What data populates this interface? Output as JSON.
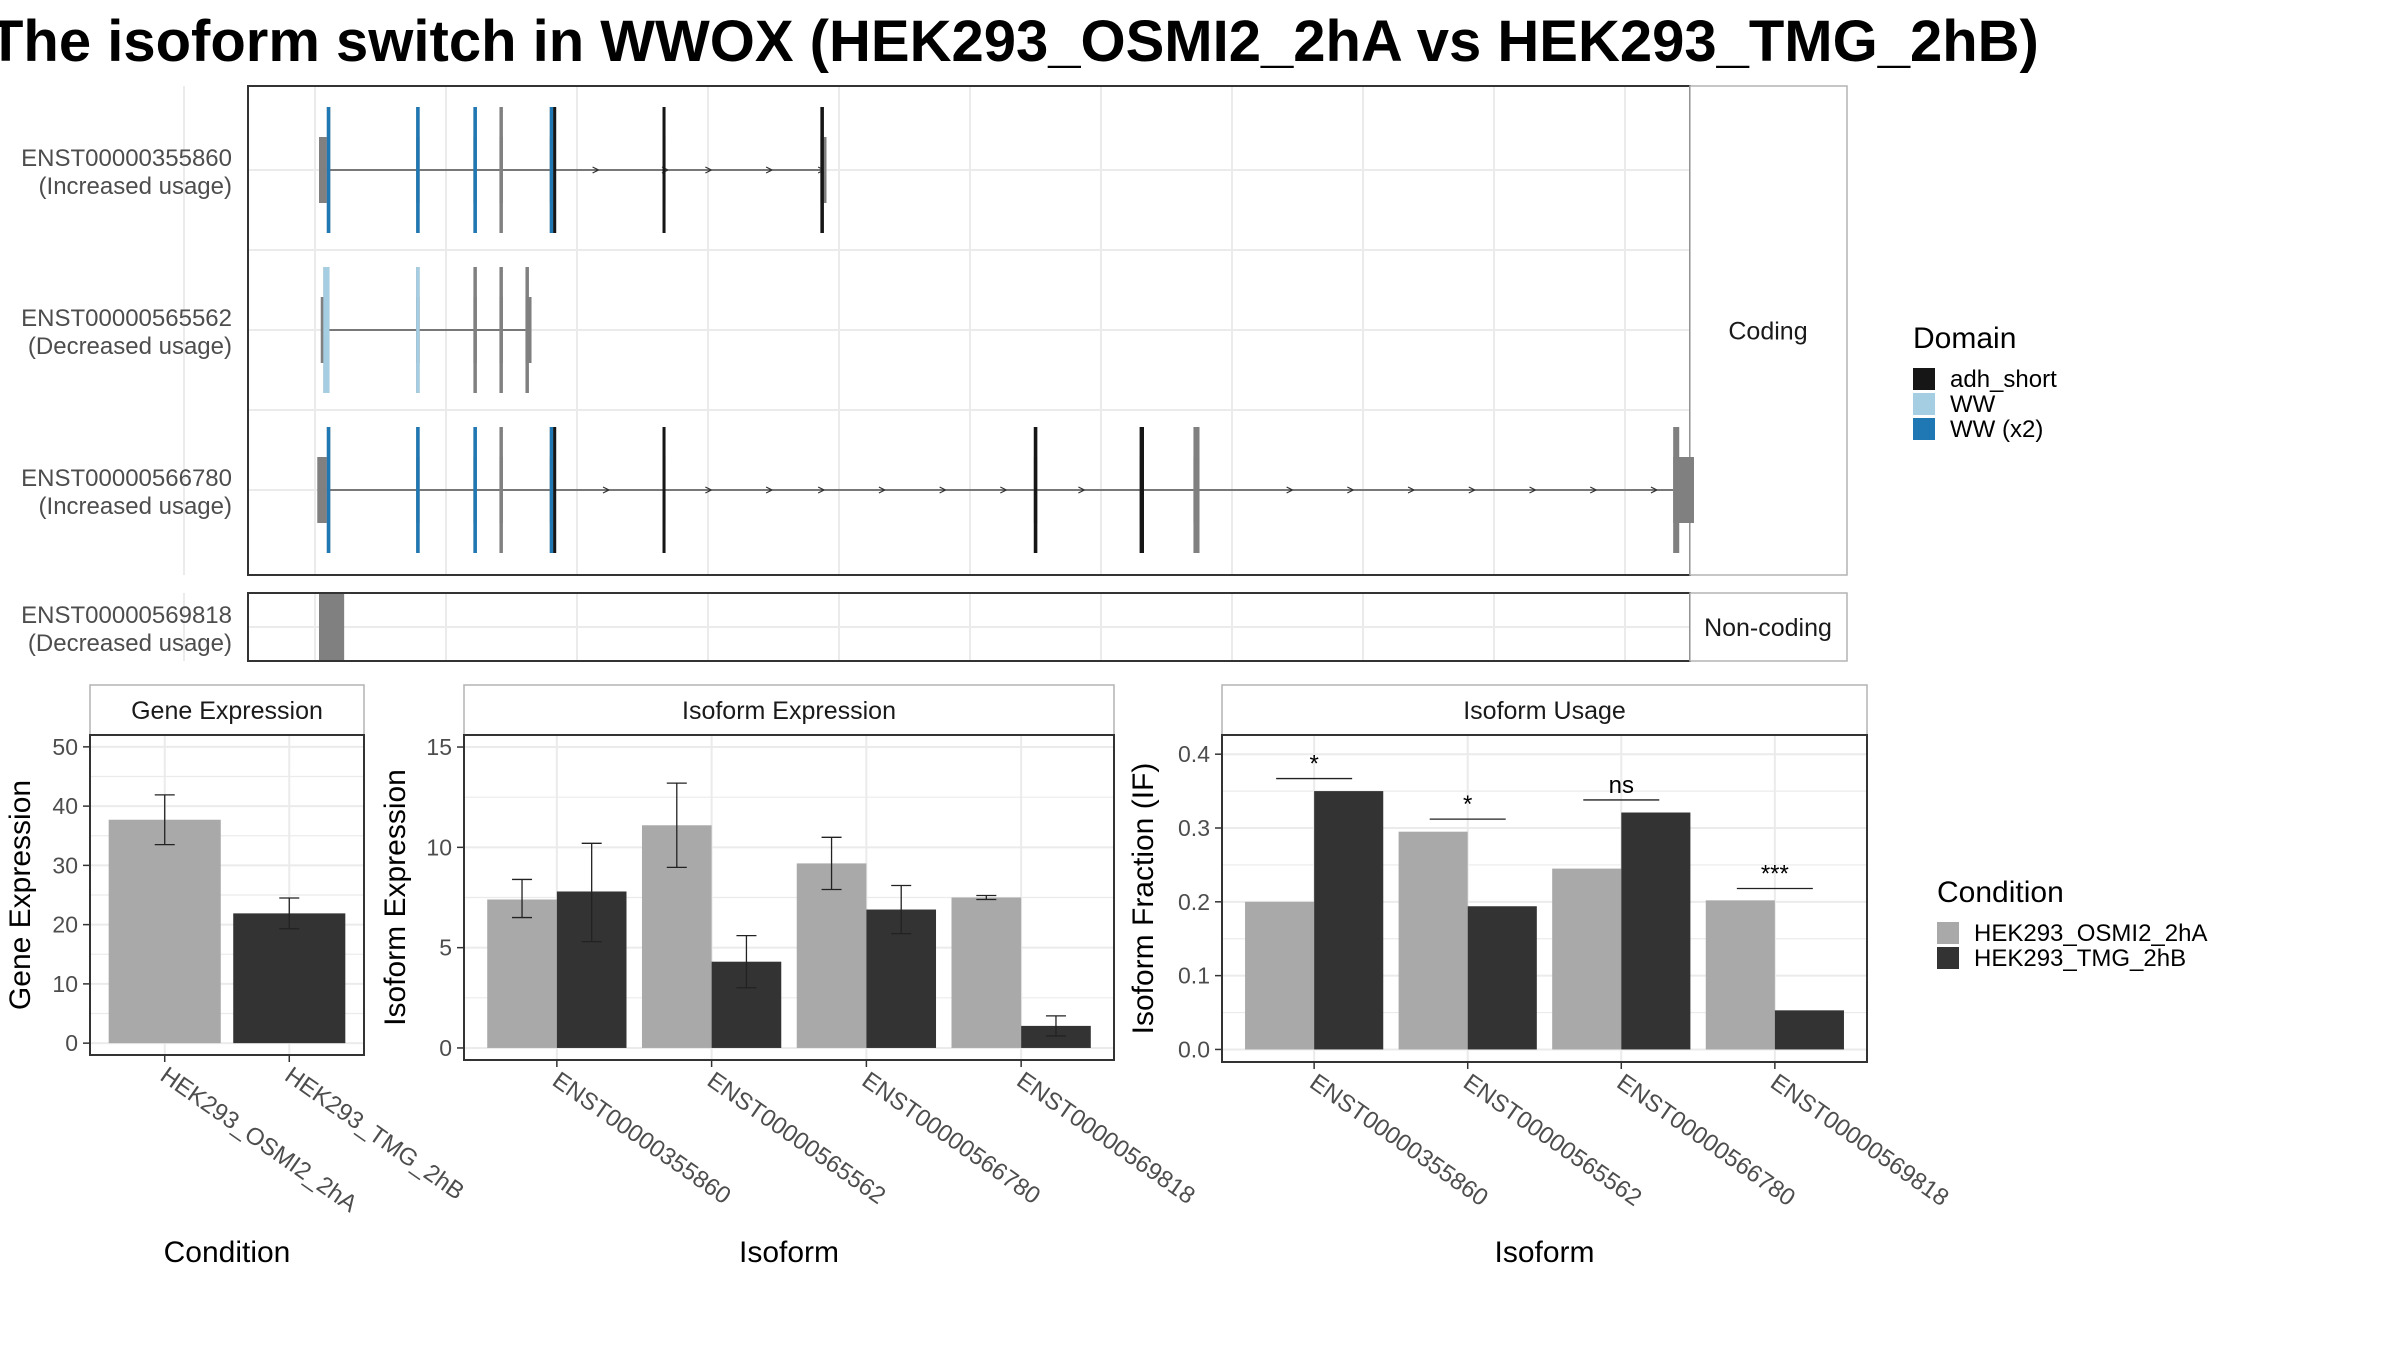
{
  "title": "The isoform switch in WWOX (HEK293_OSMI2_2hA vs HEK293_TMG_2hB)",
  "colors": {
    "cond1": "#a9a9a9",
    "cond2": "#333333",
    "domain_adh_short": "#161616",
    "domain_ww": "#a6cee3",
    "domain_ww_x2": "#1f78b4",
    "exon": "#808080",
    "panel_border": "#333333",
    "grid": "#ebebeb",
    "strip_border": "#b3b3b3"
  },
  "chart_data": [
    {
      "type": "isoform-structure",
      "panels": {
        "coding_label": "Coding",
        "noncoding_label": "Non-coding"
      },
      "isoforms": [
        {
          "id": "ENST00000355860",
          "usage": "(Increased usage)",
          "group": "coding",
          "exons": [
            [
              0,
              9
            ],
            [
              112,
              116
            ],
            [
              178,
              182
            ],
            [
              208,
              212
            ],
            [
              266,
              272
            ],
            [
              396,
              399
            ],
            [
              578,
              585
            ]
          ],
          "cds": [
            [
              9,
              13
            ],
            [
              112,
              116
            ],
            [
              178,
              182
            ],
            [
              208,
              212
            ],
            [
              266,
              272
            ],
            [
              396,
              399
            ],
            [
              578,
              582
            ]
          ],
          "domains": [
            {
              "domain": "ww_x2",
              "range": [
                9,
                13
              ]
            },
            {
              "domain": "ww_x2",
              "range": [
                112,
                116
              ]
            },
            {
              "domain": "ww_x2",
              "range": [
                178,
                182
              ]
            },
            {
              "domain": "ww_x2",
              "range": [
                266,
                270
              ]
            },
            {
              "domain": "adh_short",
              "range": [
                270,
                272
              ]
            },
            {
              "domain": "adh_short",
              "range": [
                396,
                399
              ]
            },
            {
              "domain": "adh_short",
              "range": [
                578,
                582
              ]
            }
          ],
          "arrows": [
            320,
            400,
            450,
            520,
            580
          ]
        },
        {
          "id": "ENST00000565562",
          "usage": "(Decreased usage)",
          "group": "coding",
          "exons": [
            [
              2,
              12
            ],
            [
              112,
              116
            ],
            [
              178,
              182
            ],
            [
              208,
              212
            ],
            [
              238,
              245
            ]
          ],
          "cds": [
            [
              5,
              12
            ],
            [
              112,
              116
            ],
            [
              178,
              182
            ],
            [
              208,
              212
            ],
            [
              238,
              242
            ]
          ],
          "domains": [
            {
              "domain": "ww",
              "range": [
                5,
                12
              ]
            },
            {
              "domain": "ww",
              "range": [
                112,
                116
              ]
            }
          ],
          "arrows": []
        },
        {
          "id": "ENST00000566780",
          "usage": "(Increased usage)",
          "group": "coding",
          "exons": [
            [
              -2,
              9
            ],
            [
              112,
              116
            ],
            [
              178,
              182
            ],
            [
              208,
              212
            ],
            [
              266,
              272
            ],
            [
              396,
              399
            ],
            [
              824,
              828
            ],
            [
              946,
              951
            ],
            [
              1008,
              1015
            ],
            [
              1561,
              1585
            ]
          ],
          "cds": [
            [
              9,
              13
            ],
            [
              112,
              116
            ],
            [
              178,
              182
            ],
            [
              208,
              212
            ],
            [
              266,
              272
            ],
            [
              396,
              399
            ],
            [
              824,
              828
            ],
            [
              946,
              951
            ],
            [
              1008,
              1015
            ],
            [
              1561,
              1568
            ]
          ],
          "domains": [
            {
              "domain": "ww_x2",
              "range": [
                9,
                13
              ]
            },
            {
              "domain": "ww_x2",
              "range": [
                112,
                116
              ]
            },
            {
              "domain": "ww_x2",
              "range": [
                178,
                182
              ]
            },
            {
              "domain": "ww_x2",
              "range": [
                266,
                270
              ]
            },
            {
              "domain": "adh_short",
              "range": [
                270,
                272
              ]
            },
            {
              "domain": "adh_short",
              "range": [
                396,
                399
              ]
            },
            {
              "domain": "adh_short",
              "range": [
                824,
                828
              ]
            },
            {
              "domain": "adh_short",
              "range": [
                946,
                951
              ]
            }
          ],
          "arrows": [
            332,
            450,
            520,
            580,
            650,
            720,
            790,
            880,
            1120,
            1190,
            1260,
            1330,
            1400,
            1470,
            1540
          ]
        },
        {
          "id": "ENST00000569818",
          "usage": "(Decreased usage)",
          "group": "noncoding",
          "exons": [
            [
              0,
              29
            ]
          ],
          "cds": [],
          "domains": [],
          "arrows": []
        }
      ],
      "legend": {
        "title": "Domain",
        "entries": [
          {
            "key": "adh_short",
            "label": "adh_short"
          },
          {
            "key": "ww",
            "label": "WW"
          },
          {
            "key": "ww_x2",
            "label": "WW (x2)"
          }
        ]
      }
    },
    {
      "type": "bar",
      "strip": "Gene Expression",
      "xlabel": "Condition",
      "ylabel": "Gene Expression",
      "categories": [
        "HEK293_OSMI2_2hA",
        "HEK293_TMG_2hB"
      ],
      "values": [
        37.7,
        21.9
      ],
      "error": [
        [
          33.5,
          41.9
        ],
        [
          19.3,
          24.5
        ]
      ],
      "ylim": [
        -2,
        52
      ],
      "yticks": [
        0,
        10,
        20,
        30,
        40,
        50
      ]
    },
    {
      "type": "bar",
      "strip": "Isoform Expression",
      "xlabel": "Isoform",
      "ylabel": "Isoform Expression",
      "categories": [
        "ENST00000355860",
        "ENST00000565562",
        "ENST00000566780",
        "ENST00000569818"
      ],
      "series": [
        {
          "name": "HEK293_OSMI2_2hA",
          "values": [
            7.4,
            11.1,
            9.2,
            7.5
          ],
          "error": [
            [
              6.5,
              8.4
            ],
            [
              9.0,
              13.2
            ],
            [
              7.9,
              10.5
            ],
            [
              7.4,
              7.6
            ]
          ]
        },
        {
          "name": "HEK293_TMG_2hB",
          "values": [
            7.8,
            4.3,
            6.9,
            1.1
          ],
          "error": [
            [
              5.3,
              10.2
            ],
            [
              3.0,
              5.6
            ],
            [
              5.7,
              8.1
            ],
            [
              0.6,
              1.6
            ]
          ]
        }
      ],
      "ylim": [
        -0.6,
        15.6
      ],
      "yticks": [
        0,
        5,
        10,
        15
      ]
    },
    {
      "type": "bar",
      "strip": "Isoform Usage",
      "xlabel": "Isoform",
      "ylabel": "Isoform Fraction (IF)",
      "categories": [
        "ENST00000355860",
        "ENST00000565562",
        "ENST00000566780",
        "ENST00000569818"
      ],
      "series": [
        {
          "name": "HEK293_OSMI2_2hA",
          "values": [
            0.2,
            0.295,
            0.245,
            0.202
          ]
        },
        {
          "name": "HEK293_TMG_2hB",
          "values": [
            0.35,
            0.194,
            0.321,
            0.053
          ]
        }
      ],
      "significance": [
        {
          "label": "*",
          "y": 0.367
        },
        {
          "label": "*",
          "y": 0.312
        },
        {
          "label": "ns",
          "y": 0.338
        },
        {
          "label": "***",
          "y": 0.218
        }
      ],
      "ylim": [
        -0.017,
        0.426
      ],
      "yticks": [
        0.0,
        0.1,
        0.2,
        0.3,
        0.4
      ],
      "legend": {
        "title": "Condition",
        "entries": [
          "HEK293_OSMI2_2hA",
          "HEK293_TMG_2hB"
        ]
      }
    }
  ]
}
